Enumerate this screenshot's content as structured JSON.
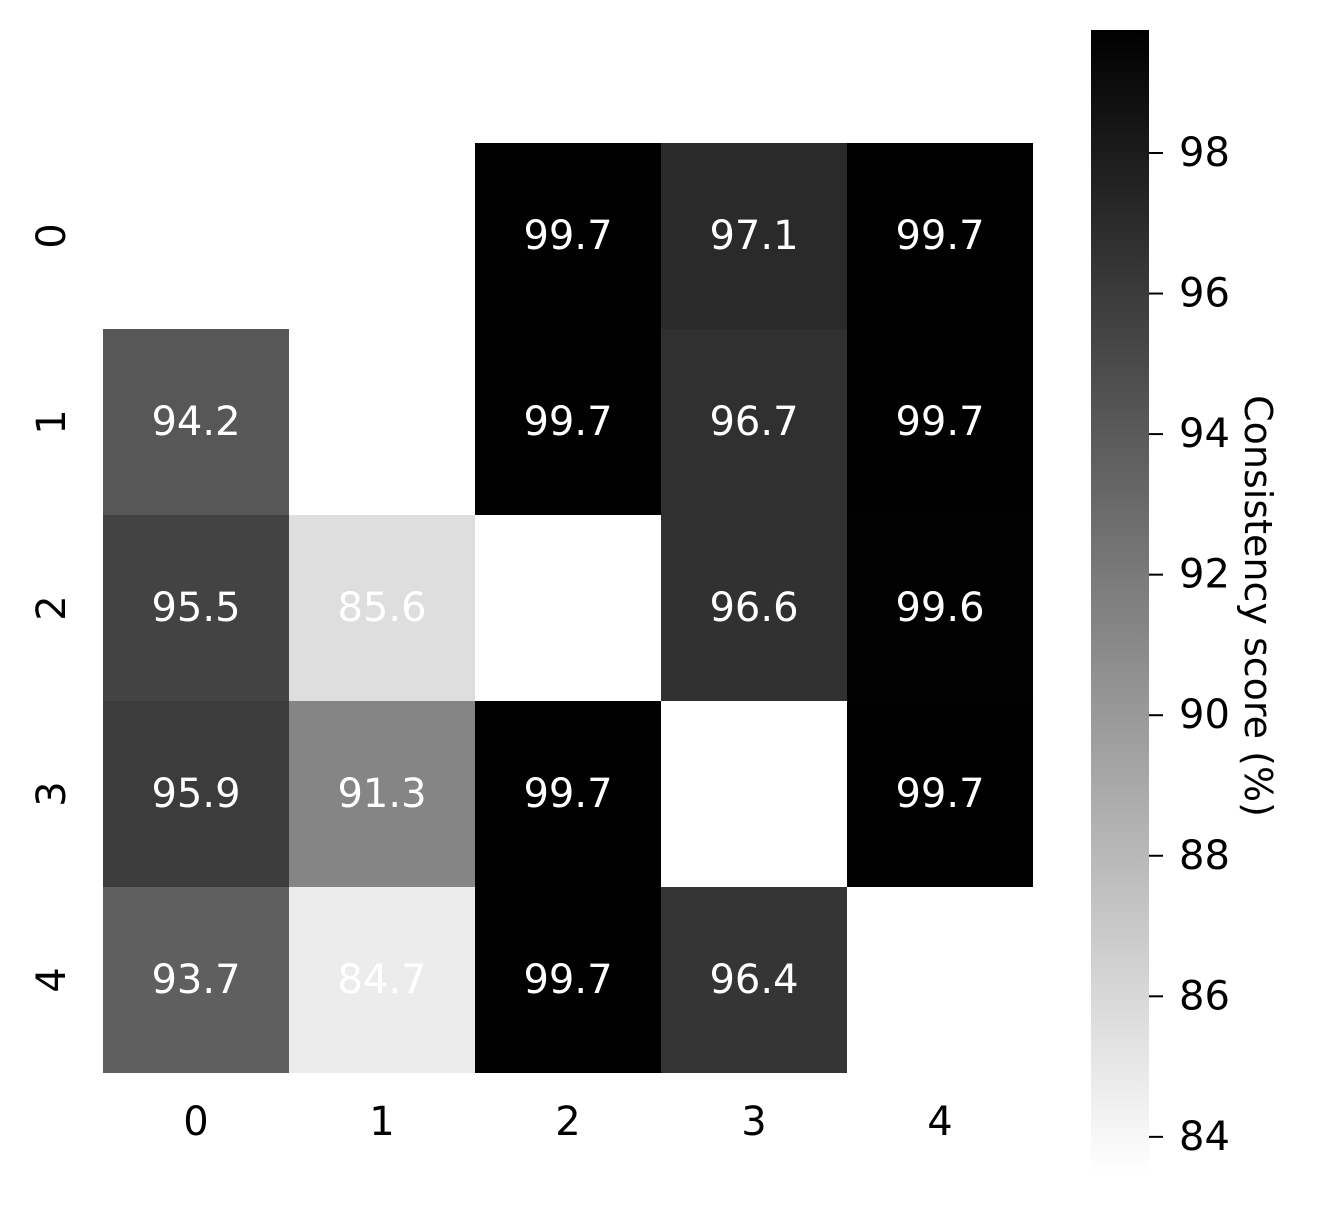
{
  "chart_data": {
    "type": "heatmap",
    "title": "",
    "xlabel": "",
    "ylabel": "",
    "x_ticks": [
      "0",
      "1",
      "2",
      "3",
      "4"
    ],
    "y_ticks": [
      "0",
      "1",
      "2",
      "3",
      "4"
    ],
    "values": [
      [
        null,
        null,
        99.7,
        97.1,
        99.7
      ],
      [
        94.2,
        null,
        99.7,
        96.7,
        99.7
      ],
      [
        95.5,
        85.6,
        null,
        96.6,
        99.6
      ],
      [
        95.9,
        91.3,
        99.7,
        null,
        99.7
      ],
      [
        93.7,
        84.7,
        99.7,
        96.4,
        null
      ]
    ],
    "cell_labels": [
      [
        null,
        null,
        "99.7",
        "97.1",
        "99.7"
      ],
      [
        "94.2",
        null,
        "99.7",
        "96.7",
        "99.7"
      ],
      [
        "95.5",
        "85.6",
        null,
        "96.6",
        "99.6"
      ],
      [
        "95.9",
        "91.3",
        "99.7",
        null,
        "99.7"
      ],
      [
        "93.7",
        "84.7",
        "99.7",
        "96.4",
        null
      ]
    ],
    "colormap": "Greys",
    "color_low": "#ffffff",
    "color_high": "#000000",
    "label_color": "#ffffff",
    "colorbar": {
      "label": "Consistency score (%)",
      "range": [
        83.5,
        99.75
      ],
      "ticks": [
        "98",
        "96",
        "94",
        "92",
        "90",
        "88",
        "86",
        "84"
      ]
    }
  }
}
